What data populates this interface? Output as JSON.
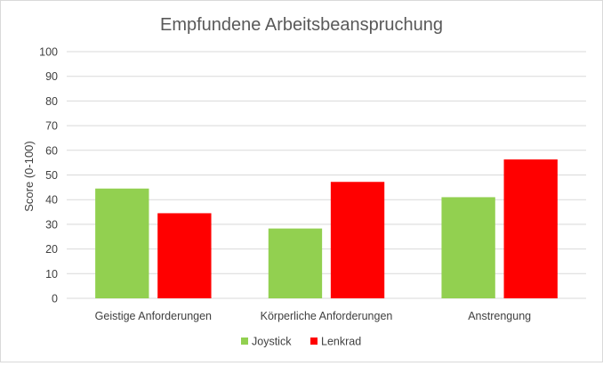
{
  "chart_data": {
    "type": "bar",
    "title": "Empfundene Arbeitsbeanspruchung",
    "xlabel": "",
    "ylabel": "Score (0-100)",
    "ylim": [
      0,
      100
    ],
    "yticks": [
      0,
      10,
      20,
      30,
      40,
      50,
      60,
      70,
      80,
      90,
      100
    ],
    "grid": true,
    "legend_position": "bottom",
    "categories": [
      "Geistige Anforderungen",
      "Körperliche Anforderungen",
      "Anstrengung"
    ],
    "series": [
      {
        "name": "Joystick",
        "color": "#92d050",
        "values": [
          44.5,
          28.3,
          41
        ]
      },
      {
        "name": "Lenkrad",
        "color": "#ff0000",
        "values": [
          34.5,
          47.2,
          56.3
        ]
      }
    ]
  }
}
